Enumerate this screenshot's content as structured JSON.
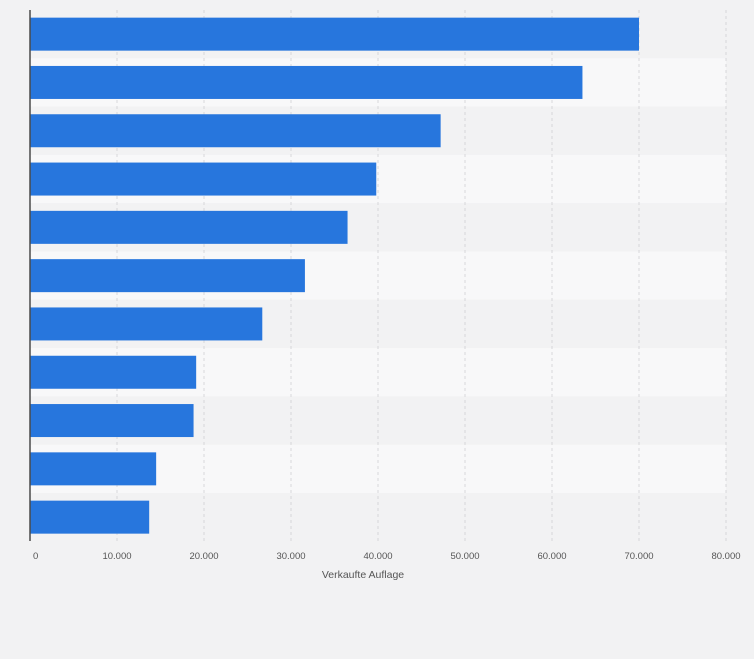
{
  "chart_data": {
    "type": "bar",
    "orientation": "horizontal",
    "categories": [
      "",
      "",
      "",
      "",
      "",
      "",
      "",
      "",
      "",
      "",
      ""
    ],
    "values": [
      70000,
      63500,
      47200,
      39800,
      36500,
      31600,
      26700,
      19100,
      18800,
      14500,
      13700
    ],
    "xlabel": "Verkaufte Auflage",
    "ylabel": "",
    "xlim": [
      0,
      80000
    ],
    "ticks": [
      "0",
      "10.000",
      "20.000",
      "30.000",
      "40.000",
      "50.000",
      "60.000",
      "70.000",
      "80.000"
    ],
    "grid": true,
    "legend": "none",
    "colors": {
      "bar": "#2776dd",
      "band_dark": "#f2f2f3",
      "band_light": "#f8f8f9",
      "gridline": "#d7d7da",
      "axis_line": "#4a4a4a",
      "tick_text": "#555555"
    }
  }
}
